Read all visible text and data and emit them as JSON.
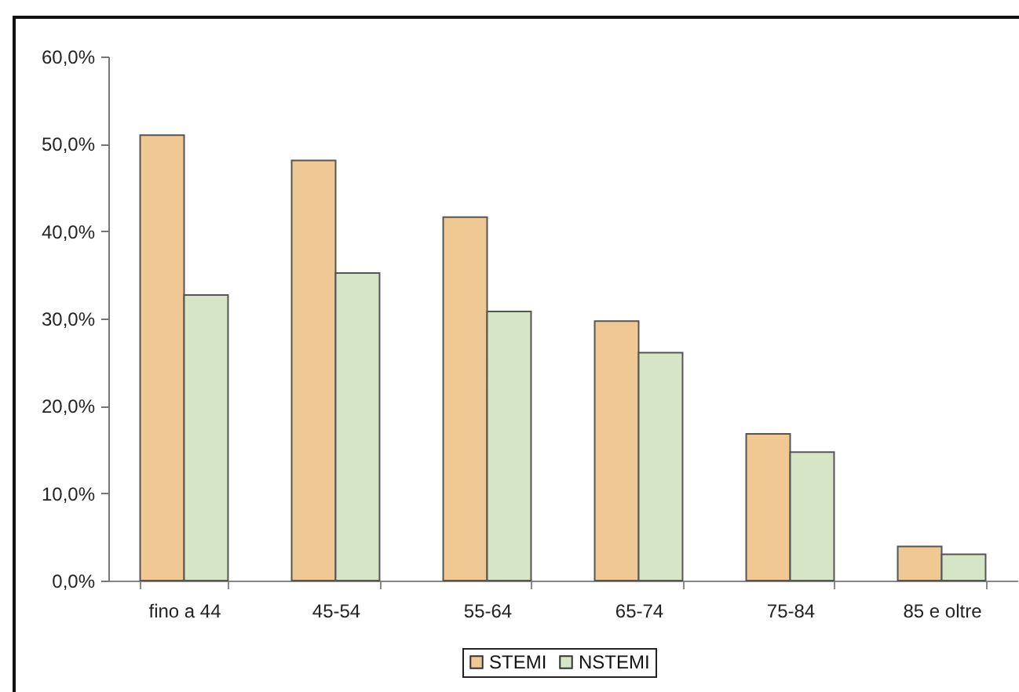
{
  "chart_data": {
    "type": "bar",
    "categories": [
      "fino a 44",
      "45-54",
      "55-64",
      "65-74",
      "75-84",
      "85 e oltre"
    ],
    "series": [
      {
        "name": "STEMI",
        "color": "#efc893",
        "values": [
          51.0,
          48.1,
          41.6,
          29.7,
          16.8,
          3.9
        ]
      },
      {
        "name": "NSTEMI",
        "color": "#d5e5c6",
        "values": [
          32.7,
          35.2,
          30.8,
          26.1,
          14.7,
          3.0
        ]
      }
    ],
    "ylim": [
      0,
      60
    ],
    "yticks": [
      {
        "value": 0,
        "label": "0,0%"
      },
      {
        "value": 10,
        "label": "10,0%"
      },
      {
        "value": 20,
        "label": "20,0%"
      },
      {
        "value": 30,
        "label": "30,0%"
      },
      {
        "value": 40,
        "label": "40,0%"
      },
      {
        "value": 50,
        "label": "50,0%"
      },
      {
        "value": 60,
        "label": "60,0%"
      }
    ],
    "grid": false,
    "legend": "bottom"
  }
}
